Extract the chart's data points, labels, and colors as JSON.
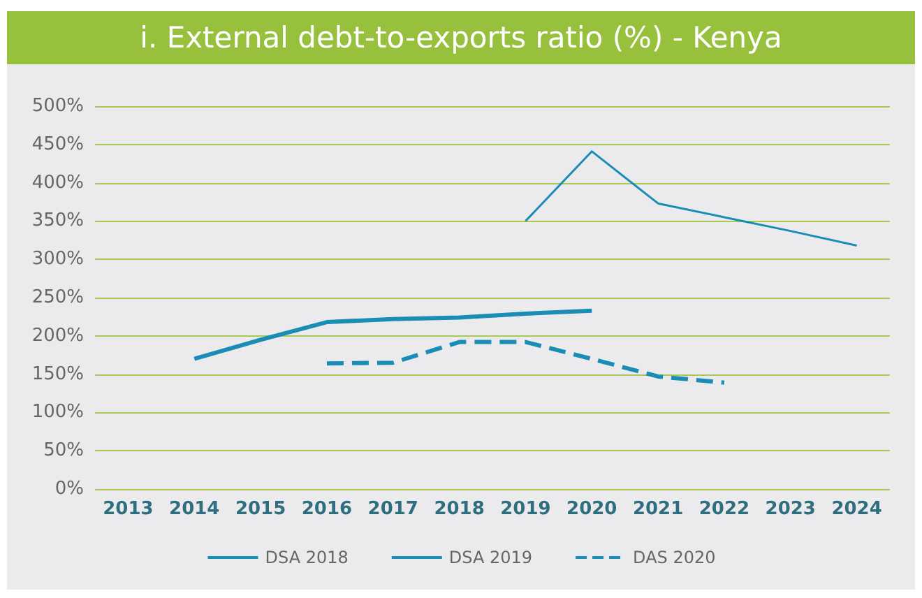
{
  "chart_data": {
    "type": "line",
    "title": "i. External debt-to-exports ratio (%) - Kenya",
    "categories": [
      "2013",
      "2014",
      "2015",
      "2016",
      "2017",
      "2018",
      "2019",
      "2020",
      "2021",
      "2022",
      "2023",
      "2024"
    ],
    "series": [
      {
        "name": "DSA 2018",
        "color": "#1a8db5",
        "line_style": "solid",
        "values": [
          null,
          170,
          195,
          218,
          222,
          224,
          229,
          233,
          null,
          null,
          null,
          null
        ]
      },
      {
        "name": "DSA 2019",
        "color": "#1a8db5",
        "line_style": "solid",
        "values": [
          null,
          null,
          null,
          null,
          null,
          null,
          350,
          441,
          373,
          355,
          337,
          318
        ]
      },
      {
        "name": "DAS 2020",
        "color": "#1a8db5",
        "line_style": "dashed",
        "values": [
          null,
          null,
          null,
          164,
          165,
          192,
          192,
          170,
          147,
          139,
          null,
          null
        ]
      }
    ],
    "ylim": [
      0,
      500
    ],
    "yticks": [
      {
        "value": 0,
        "label": "0%"
      },
      {
        "value": 50,
        "label": "50%"
      },
      {
        "value": 100,
        "label": "100%"
      },
      {
        "value": 150,
        "label": "150%"
      },
      {
        "value": 200,
        "label": "200%"
      },
      {
        "value": 250,
        "label": "250%"
      },
      {
        "value": 300,
        "label": "300%"
      },
      {
        "value": 350,
        "label": "350%"
      },
      {
        "value": 400,
        "label": "400%"
      },
      {
        "value": 450,
        "label": "450%"
      },
      {
        "value": 500,
        "label": "500%"
      }
    ],
    "grid": "y",
    "legend": "bottom",
    "marker": "none"
  }
}
